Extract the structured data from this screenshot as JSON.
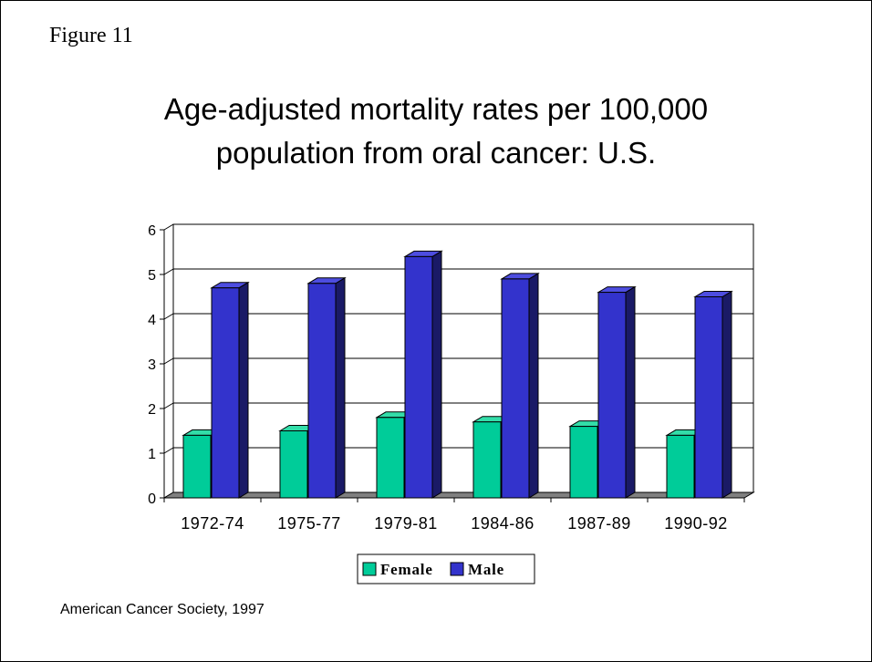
{
  "figure_label": "Figure 11",
  "source": "American Cancer Society, 1997",
  "colors": {
    "female_front": "#00cc99",
    "female_side": "#007755",
    "female_top": "#33dda9",
    "male_front": "#3333cc",
    "male_side": "#1a1a66",
    "male_top": "#4d4de0",
    "floor": "#808080"
  },
  "chart_data": {
    "type": "bar",
    "title_lines": [
      "Age-adjusted mortality rates per 100,000",
      "population from oral cancer: U.S."
    ],
    "categories": [
      "1972-74",
      "1975-77",
      "1979-81",
      "1984-86",
      "1987-89",
      "1990-92"
    ],
    "series": [
      {
        "name": "Female",
        "values": [
          1.4,
          1.5,
          1.8,
          1.7,
          1.6,
          1.4
        ]
      },
      {
        "name": "Male",
        "values": [
          4.7,
          4.8,
          5.4,
          4.9,
          4.6,
          4.5
        ]
      }
    ],
    "ylim": [
      0,
      6
    ],
    "yticks": [
      "0",
      "1",
      "2",
      "3",
      "4",
      "5",
      "6"
    ],
    "grid": true,
    "legend": "bottom-center"
  }
}
